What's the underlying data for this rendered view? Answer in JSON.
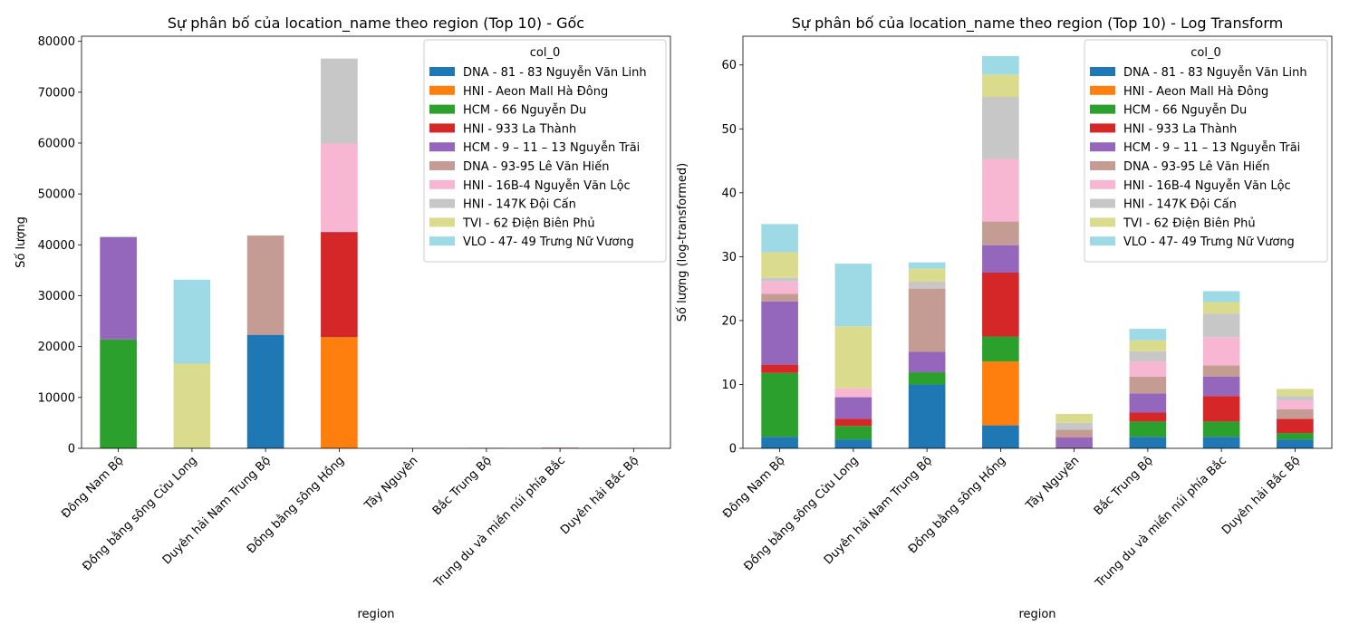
{
  "chart_data": [
    {
      "type": "bar",
      "stacked": true,
      "title": "Sự phân bố của location_name theo region (Top 10) - Gốc",
      "xlabel": "region",
      "ylabel": "Số lượng",
      "ylim": [
        0,
        81000
      ],
      "yticks": [
        0,
        10000,
        20000,
        30000,
        40000,
        50000,
        60000,
        70000,
        80000
      ],
      "ytick_labels": [
        "0",
        "10000",
        "20000",
        "30000",
        "40000",
        "50000",
        "60000",
        "70000",
        "80000"
      ],
      "grid": false,
      "legend_title": "col_0",
      "legend_position": "top-right",
      "categories": [
        "Đông Nam Bộ",
        "Đồng bằng sông Cửu Long",
        "Duyên hải Nam Trung Bộ",
        "Đồng bằng sông Hồng",
        "Tây Nguyên",
        "Bắc Trung Bộ",
        "Trung du và miền núi phía Bắc",
        "Duyên hải Bắc Bộ"
      ],
      "series": [
        {
          "name": "DNA - 81 - 83 Nguyễn Văn Linh",
          "color": "#1f77b4",
          "values": [
            5,
            3,
            22300,
            10,
            0,
            5,
            5,
            3
          ]
        },
        {
          "name": "HNI - Aeon Mall Hà Đông",
          "color": "#ff7f0e",
          "values": [
            0,
            0,
            0,
            21800,
            0,
            0,
            0,
            0
          ]
        },
        {
          "name": "HCM - 66 Nguyễn Du",
          "color": "#2ca02c",
          "values": [
            21400,
            5,
            5,
            50,
            0,
            10,
            10,
            3
          ]
        },
        {
          "name": "HNI - 933 La Thành",
          "color": "#d62728",
          "values": [
            3,
            3,
            0,
            20600,
            0,
            5,
            60,
            10
          ]
        },
        {
          "name": "HCM - 9 – 11 – 13 Nguyễn Trãi",
          "color": "#9467bd",
          "values": [
            20100,
            30,
            20,
            80,
            5,
            20,
            20,
            0
          ]
        },
        {
          "name": "DNA - 93-95 Lê Văn Hiến",
          "color": "#c49c94",
          "values": [
            5,
            0,
            19500,
            60,
            3,
            20,
            20,
            5
          ]
        },
        {
          "name": "HNI - 16B-4 Nguyễn Văn Lộc",
          "color": "#f7b6d2",
          "values": [
            10,
            5,
            0,
            17300,
            0,
            10,
            50,
            5
          ]
        },
        {
          "name": "HNI - 147K Đội Cấn",
          "color": "#c7c7c7",
          "values": [
            5,
            0,
            5,
            16700,
            5,
            10,
            20,
            3
          ]
        },
        {
          "name": "TVI - 62 Điện Biên Phủ",
          "color": "#dbdb8d",
          "values": [
            50,
            16600,
            10,
            20,
            10,
            20,
            10,
            5
          ]
        },
        {
          "name": "VLO - 47- 49 Trưng Nữ Vương",
          "color": "#9edae5",
          "values": [
            100,
            16500,
            10,
            20,
            0,
            20,
            0,
            0
          ]
        }
      ]
    },
    {
      "type": "bar",
      "stacked": true,
      "title": "Sự phân bố của location_name theo region (Top 10) - Log Transform",
      "xlabel": "region",
      "ylabel": "Số lượng (log-transformed)",
      "ylim": [
        0,
        64.5
      ],
      "yticks": [
        0,
        10,
        20,
        30,
        40,
        50,
        60
      ],
      "ytick_labels": [
        "0",
        "10",
        "20",
        "30",
        "40",
        "50",
        "60"
      ],
      "grid": false,
      "legend_title": "col_0",
      "legend_position": "top-right",
      "categories": [
        "Đông Nam Bộ",
        "Đồng bằng sông Cửu Long",
        "Duyên hải Nam Trung Bộ",
        "Đồng bằng sông Hồng",
        "Tây Nguyên",
        "Bắc Trung Bộ",
        "Trung du và miền núi phía Bắc",
        "Duyên hải Bắc Bộ"
      ],
      "series": [
        {
          "name": "DNA - 81 - 83 Nguyễn Văn Linh",
          "color": "#1f77b4",
          "values": [
            1.8,
            1.4,
            10.0,
            3.6,
            0,
            1.8,
            1.8,
            1.4
          ]
        },
        {
          "name": "HNI - Aeon Mall Hà Đông",
          "color": "#ff7f0e",
          "values": [
            0,
            0,
            0,
            10.0,
            0,
            0,
            0,
            0
          ]
        },
        {
          "name": "HCM - 66 Nguyễn Du",
          "color": "#2ca02c",
          "values": [
            10.0,
            2.1,
            1.9,
            3.9,
            0,
            2.4,
            2.4,
            1.0
          ]
        },
        {
          "name": "HNI - 933 La Thành",
          "color": "#d62728",
          "values": [
            1.3,
            1.1,
            0,
            10.0,
            0,
            1.4,
            4.0,
            2.2
          ]
        },
        {
          "name": "HCM - 9 – 11 – 13 Nguyễn Trãi",
          "color": "#9467bd",
          "values": [
            9.9,
            3.4,
            3.2,
            4.3,
            1.7,
            3.0,
            3.0,
            0
          ]
        },
        {
          "name": "DNA - 93-95 Lê Văn Hiến",
          "color": "#c49c94",
          "values": [
            1.2,
            0,
            9.9,
            3.7,
            1.2,
            2.6,
            1.8,
            1.5
          ]
        },
        {
          "name": "HNI - 16B-4 Nguyễn Văn Lộc",
          "color": "#f7b6d2",
          "values": [
            1.9,
            1.4,
            0,
            9.8,
            0,
            2.4,
            4.4,
            1.4
          ]
        },
        {
          "name": "HNI - 147K Đội Cấn",
          "color": "#c7c7c7",
          "values": [
            0.6,
            0,
            1.1,
            9.7,
            1.1,
            1.6,
            3.7,
            0.7
          ]
        },
        {
          "name": "TVI - 62 Điện Biên Phủ",
          "color": "#dbdb8d",
          "values": [
            4.0,
            9.7,
            2.0,
            3.5,
            1.4,
            1.7,
            1.8,
            1.1
          ]
        },
        {
          "name": "VLO - 47- 49 Trưng Nữ Vương",
          "color": "#9edae5",
          "values": [
            4.4,
            9.8,
            1.0,
            2.9,
            0,
            1.8,
            1.7,
            0
          ]
        }
      ]
    }
  ]
}
